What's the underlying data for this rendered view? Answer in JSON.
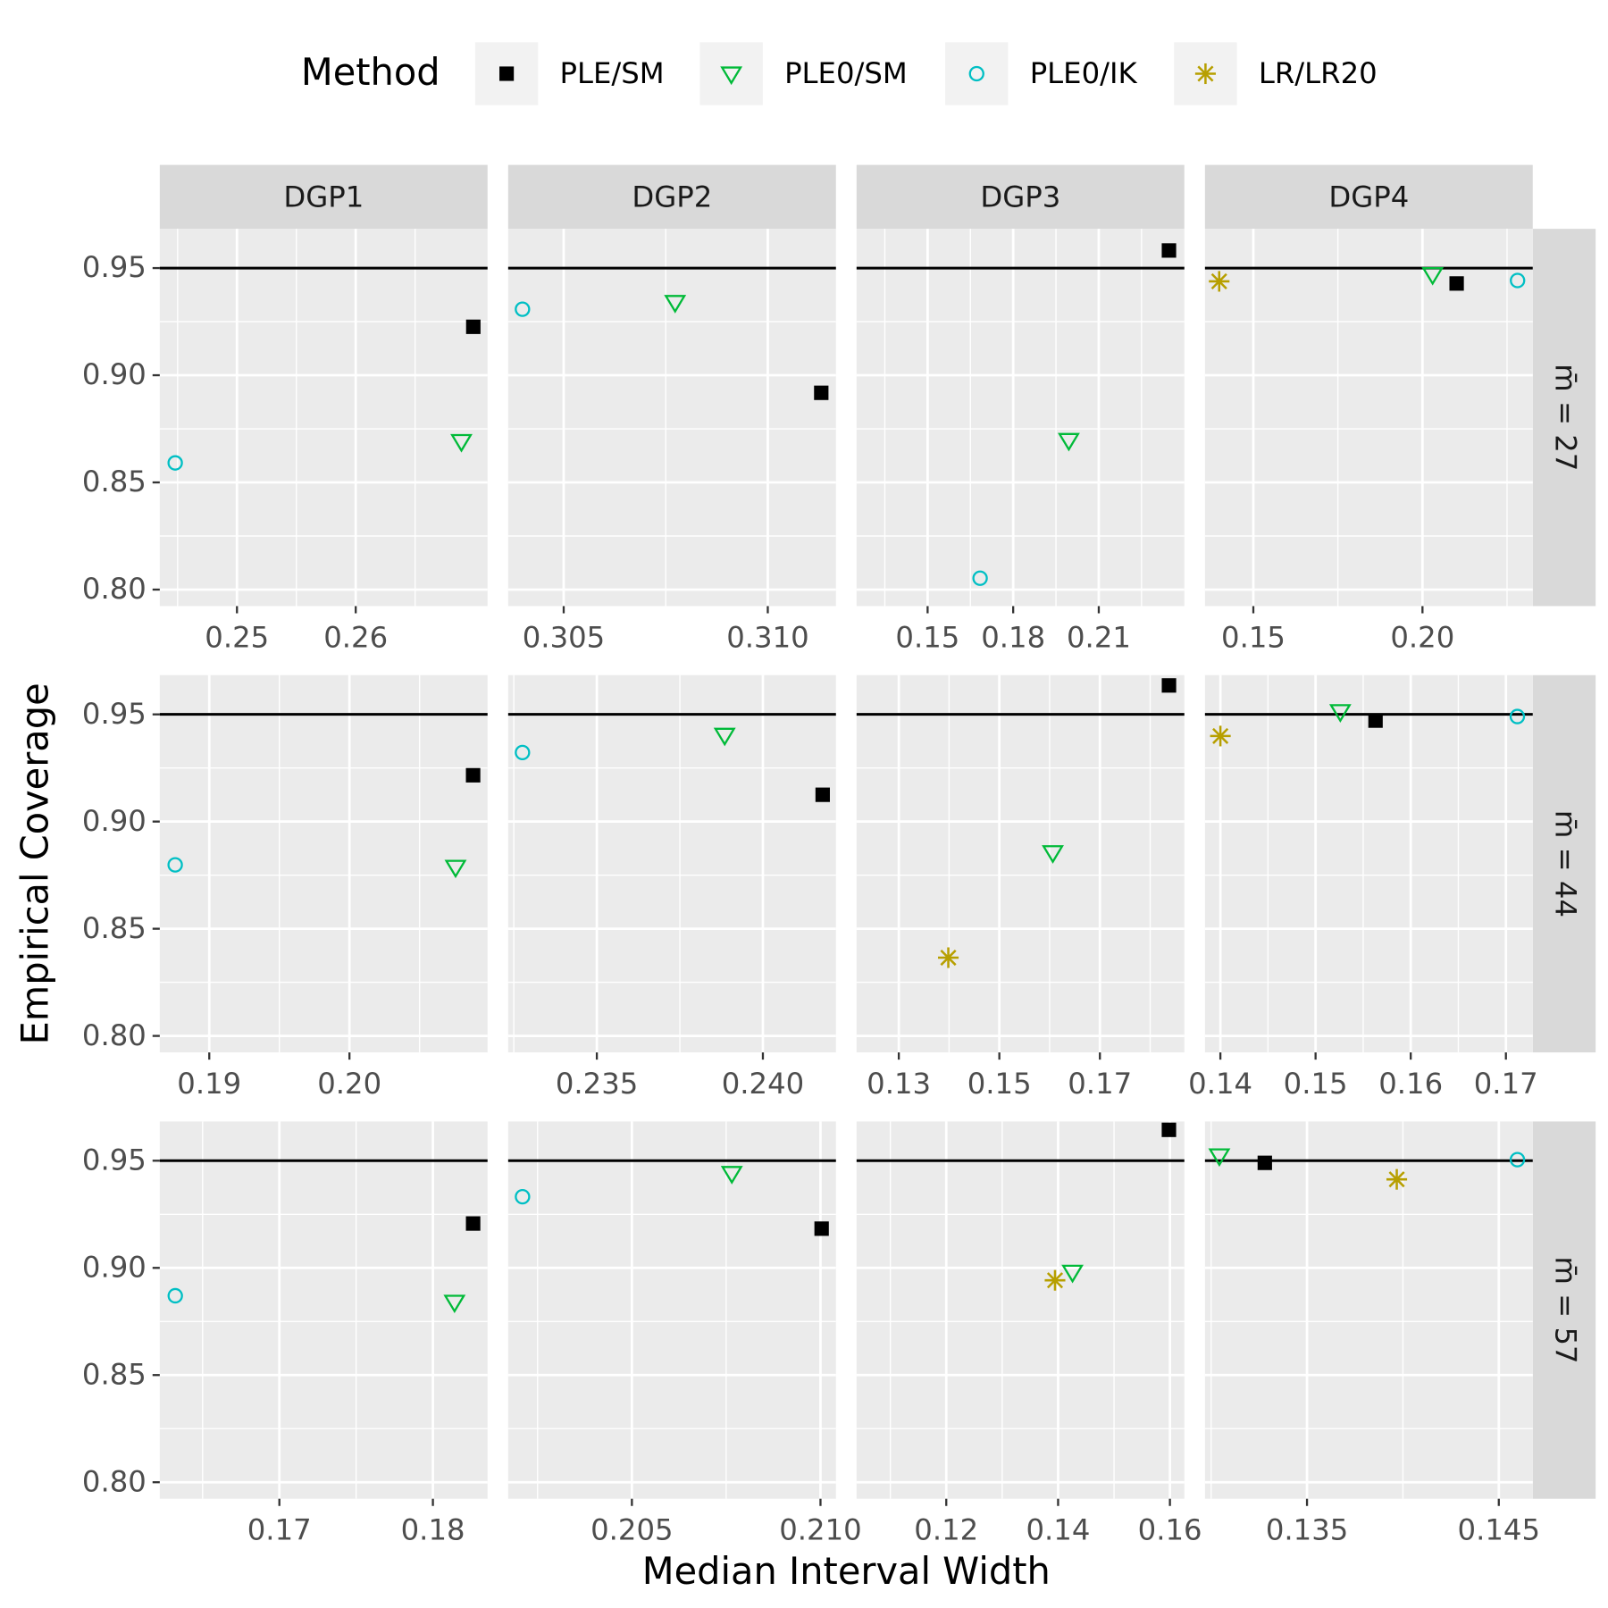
{
  "chart_data": {
    "type": "scatter",
    "legend_title": "Method",
    "x_label": "Median Interval Width",
    "y_label": "Empirical Coverage",
    "columns": [
      "DGP1",
      "DGP2",
      "DGP3",
      "DGP4"
    ],
    "rows": [
      "m̄ = 27",
      "m̄ = 44",
      "m̄ = 57"
    ],
    "reference_line": 0.95,
    "grid": true,
    "legend_position": "top",
    "series": [
      {
        "name": "PLE/SM",
        "color": "#000000",
        "marker": "square"
      },
      {
        "name": "PLE0/SM",
        "color": "#00BA38",
        "marker": "triangle-down"
      },
      {
        "name": "PLE0/IK",
        "color": "#00BFC4",
        "marker": "circle"
      },
      {
        "name": "LR/LR20",
        "color": "#B79F00",
        "marker": "asterisk"
      }
    ],
    "ylim": [
      0.7923,
      0.9683
    ],
    "yticks": [
      {
        "value": 0.8,
        "label": "0.80"
      },
      0.85,
      {
        "value": 0.9,
        "label": "0.90"
      },
      0.95
    ],
    "panels": [
      {
        "xlim": [
          0.2435,
          0.2711
        ],
        "xticks": [
          0.25,
          0.26
        ],
        "x": [
          0.2699,
          0.2689,
          0.2448,
          null
        ],
        "y": [
          0.9226,
          0.8692,
          0.8591,
          null
        ]
      },
      {
        "xlim": [
          0.30364,
          0.31167
        ],
        "xticks": [
          0.305,
          {
            "value": 0.31,
            "label": "0.310"
          }
        ],
        "x": [
          0.31131,
          0.30773,
          0.30399,
          null
        ],
        "y": [
          0.8918,
          0.9341,
          0.9308,
          null
        ]
      },
      {
        "xlim": [
          0.1251,
          0.24
        ],
        "xticks": [
          0.15,
          0.18,
          0.21
        ],
        "x": [
          0.2346,
          0.1995,
          0.1684,
          null
        ],
        "y": [
          0.9582,
          0.8697,
          0.8053,
          null
        ]
      },
      {
        "xlim": [
          0.1357,
          0.2326
        ],
        "xticks": [
          0.15,
          {
            "value": 0.2,
            "label": "0.20"
          }
        ],
        "x": [
          0.2101,
          0.203,
          0.2281,
          0.1399
        ],
        "y": [
          0.9428,
          0.9471,
          0.9442,
          0.9438
        ]
      },
      {
        "xlim": [
          0.18647,
          0.20985
        ],
        "xticks": [
          0.19,
          {
            "value": 0.2,
            "label": "0.20"
          }
        ],
        "x": [
          0.20882,
          0.20757,
          0.18757,
          null
        ],
        "y": [
          0.9216,
          0.8788,
          0.8798,
          null
        ]
      },
      {
        "xlim": [
          0.23233,
          0.2422
        ],
        "xticks": [
          0.235,
          {
            "value": 0.24,
            "label": "0.240"
          }
        ],
        "x": [
          0.2418,
          0.23885,
          0.23276,
          null
        ],
        "y": [
          0.9125,
          0.9404,
          0.9322,
          null
        ]
      },
      {
        "xlim": [
          0.1216,
          0.1868
        ],
        "xticks": [
          0.13,
          0.15,
          0.17
        ],
        "x": [
          0.18374,
          0.16064,
          null,
          0.13985
        ],
        "y": [
          0.9635,
          0.8856,
          null,
          0.8365
        ]
      },
      {
        "xlim": [
          0.13838,
          0.17282
        ],
        "xticks": [
          0.14,
          0.15,
          0.16,
          0.17
        ],
        "x": [
          0.1563,
          0.1526,
          0.1712,
          0.14
        ],
        "y": [
          0.9471,
          0.9514,
          0.949,
          0.9399
        ]
      },
      {
        "xlim": [
          0.16221,
          0.18356
        ],
        "xticks": [
          0.17,
          0.18
        ],
        "x": [
          0.18262,
          0.18141,
          0.16322,
          null
        ],
        "y": [
          0.9207,
          0.8841,
          0.887,
          null
        ]
      },
      {
        "xlim": [
          0.20172,
          0.21041
        ],
        "xticks": [
          0.205,
          {
            "value": 0.21,
            "label": "0.210"
          }
        ],
        "x": [
          0.21003,
          0.20765,
          0.2021,
          null
        ],
        "y": [
          0.9183,
          0.9442,
          0.9332,
          null
        ]
      },
      {
        "xlim": [
          0.10396,
          0.16258
        ],
        "xticks": [
          0.12,
          0.14,
          0.16
        ],
        "x": [
          0.15982,
          0.14258,
          null,
          0.13945
        ],
        "y": [
          0.9644,
          0.8981,
          null,
          0.8942
        ]
      },
      {
        "xlim": [
          0.12968,
          0.14677
        ],
        "xticks": [
          0.135,
          0.145
        ],
        "x": [
          0.1328,
          0.13043,
          0.14597,
          0.13968
        ],
        "y": [
          0.949,
          0.9524,
          0.9505,
          0.9413
        ]
      }
    ]
  }
}
